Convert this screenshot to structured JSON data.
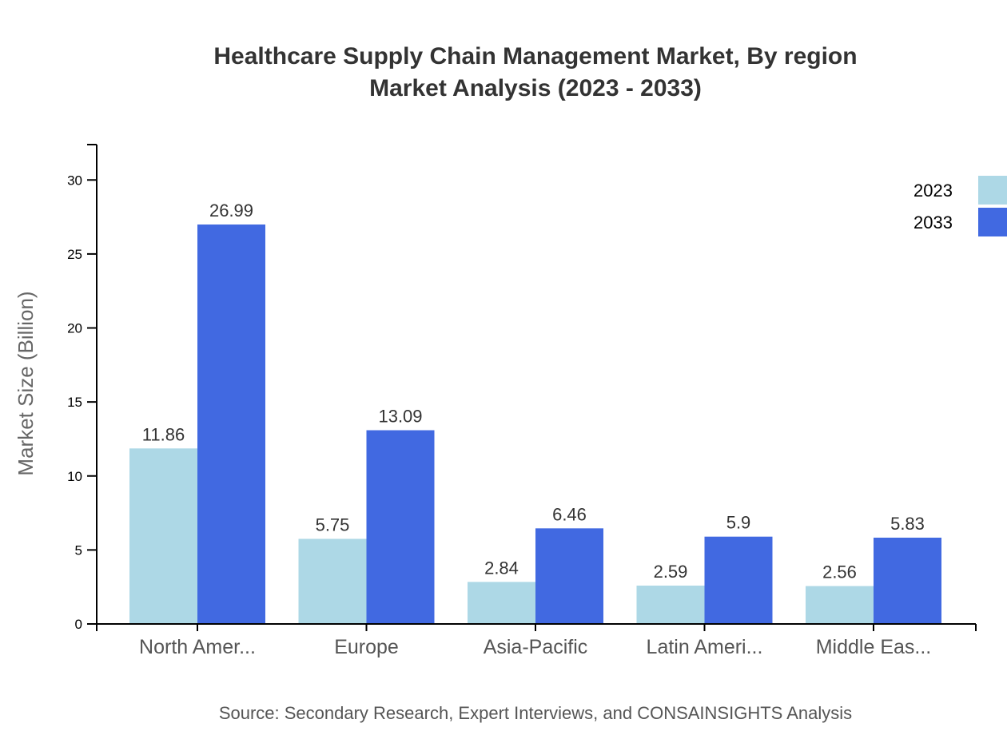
{
  "chart_data": {
    "type": "bar",
    "title": "Healthcare Supply Chain Management Market, By region",
    "subtitle": "Market Analysis (2023 - 2033)",
    "ylabel": "Market Size (Billion)",
    "xlabel": "",
    "categories": [
      "North Amer...",
      "Europe",
      "Asia-Pacific",
      "Latin Ameri...",
      "Middle Eas..."
    ],
    "series": [
      {
        "name": "2023",
        "color": "#ADD8E6",
        "values": [
          11.86,
          5.75,
          2.84,
          2.59,
          2.56
        ]
      },
      {
        "name": "2033",
        "color": "#4169E1",
        "values": [
          26.99,
          13.09,
          6.46,
          5.9,
          5.83
        ]
      }
    ],
    "ylim": [
      0,
      32.39
    ],
    "yticks": [
      0,
      5,
      10,
      15,
      20,
      25,
      30
    ],
    "grid": false,
    "legend_position": "top-right",
    "source": "Source: Secondary Research, Expert Interviews, and CONSAINSIGHTS Analysis"
  }
}
